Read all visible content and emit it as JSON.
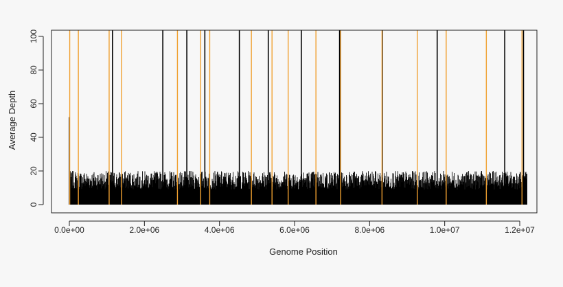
{
  "chart_data": {
    "type": "bar",
    "title": "",
    "xlabel": "Genome Position",
    "ylabel": "Average Depth",
    "xlim": [
      0,
      12200000
    ],
    "ylim": [
      0,
      104
    ],
    "x_ticks": [
      0,
      2000000,
      4000000,
      6000000,
      8000000,
      10000000,
      12000000
    ],
    "x_tick_labels": [
      "0.0e+00",
      "2.0e+06",
      "4.0e+06",
      "6.0e+06",
      "8.0e+06",
      "1.0e+07",
      "1.2e+07"
    ],
    "y_ticks": [
      0,
      20,
      40,
      60,
      80,
      100
    ],
    "y_tick_labels": [
      "0",
      "20",
      "40",
      "60",
      "80",
      "100"
    ],
    "grid": false,
    "baseline_depth_range": [
      0,
      20
    ],
    "series": [
      {
        "color": "#000000",
        "positions": [
          0,
          1150000,
          2490000,
          3130000,
          3610000,
          4530000,
          5300000,
          6180000,
          7200000,
          8340000,
          9800000,
          11600000,
          12100000
        ],
        "values": [
          52,
          100,
          100,
          100,
          100,
          100,
          100,
          100,
          100,
          100,
          100,
          100,
          100
        ]
      },
      {
        "color": "#f0a030",
        "positions": [
          10000,
          240000,
          1060000,
          1390000,
          2880000,
          3500000,
          3740000,
          4850000,
          5400000,
          5830000,
          6570000,
          7230000,
          8330000,
          9270000,
          10040000,
          11110000,
          12060000
        ],
        "values": [
          100,
          100,
          100,
          100,
          100,
          100,
          100,
          100,
          100,
          100,
          100,
          100,
          100,
          100,
          100,
          100,
          100
        ]
      }
    ]
  }
}
